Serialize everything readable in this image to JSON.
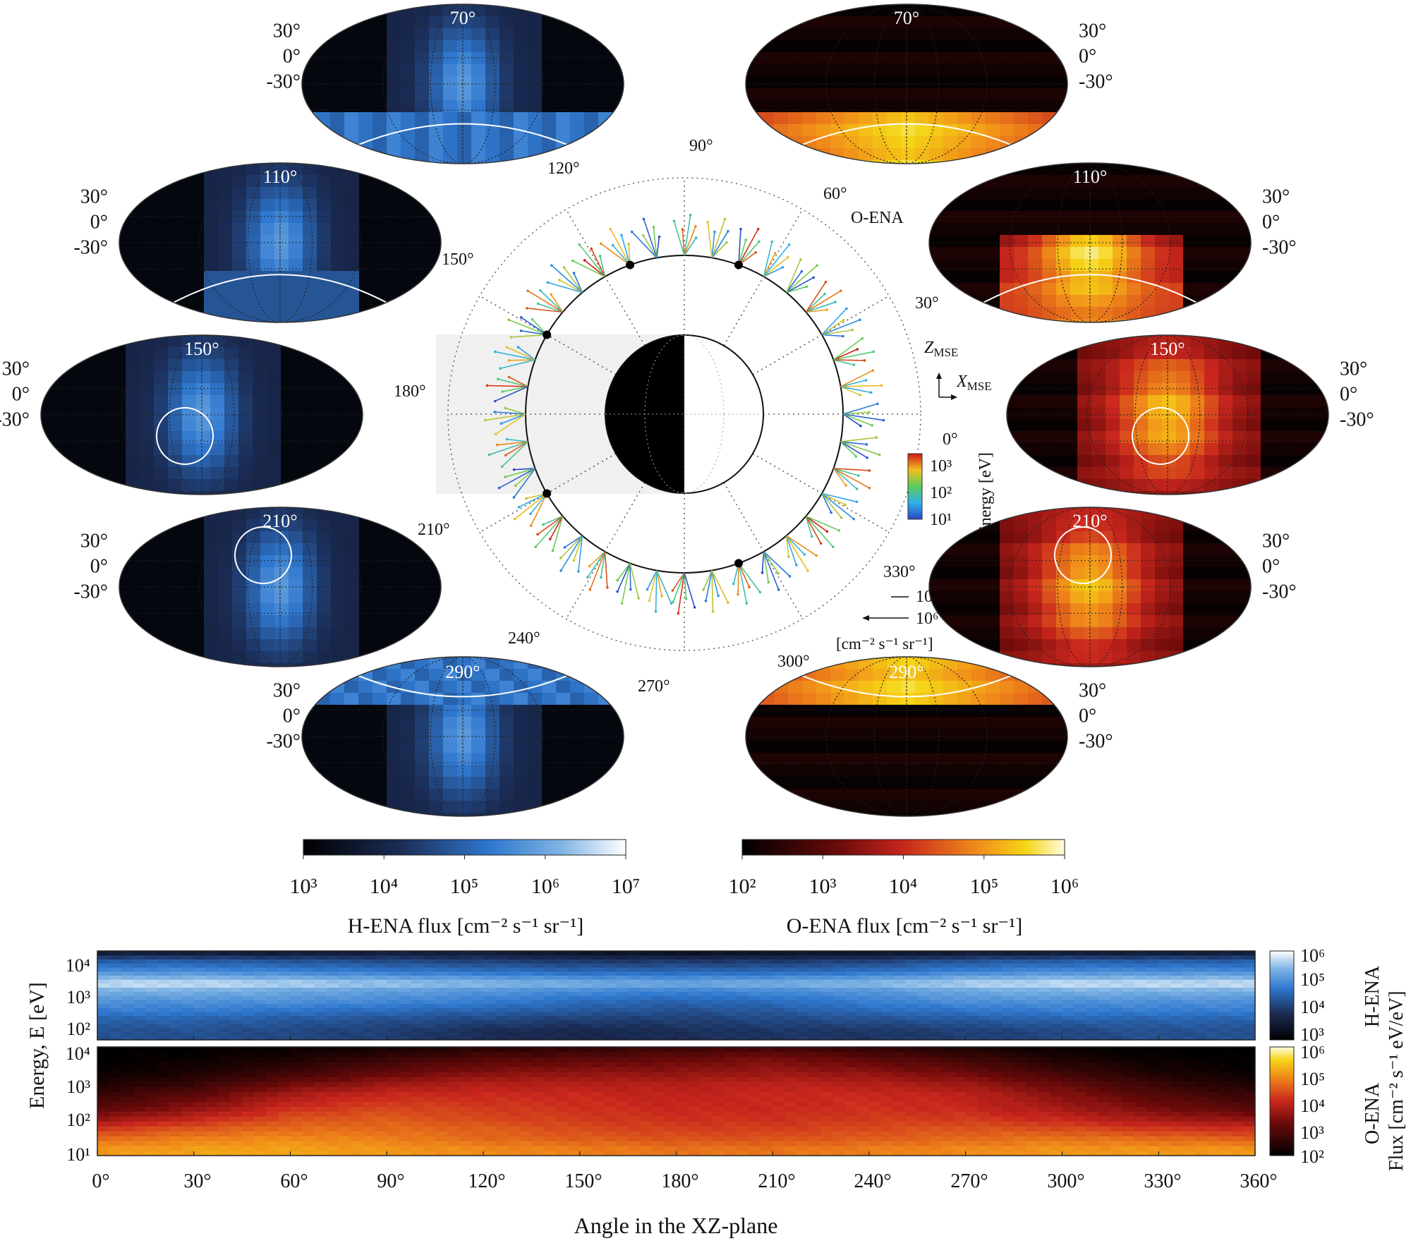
{
  "figure": {
    "polar": {
      "angle_labels": [
        "90°",
        "60°",
        "30°",
        "330°",
        "300°",
        "270°",
        "240°",
        "210°",
        "180°",
        "150°",
        "120°"
      ],
      "o_ena_label": "O-ENA",
      "axis_z": "Z",
      "axis_x": "X",
      "axis_sub": "MSE",
      "zero_label": "0°",
      "energy_title": "Energy [eV]",
      "energy_ticks": [
        "10¹",
        "10²",
        "10³"
      ],
      "flux_key_small": "10²",
      "flux_key_large": "10⁶",
      "flux_key_unit": "[cm⁻² s⁻¹ sr⁻¹]"
    },
    "h_maps": [
      {
        "label": "70°"
      },
      {
        "label": "110°"
      },
      {
        "label": "150°"
      },
      {
        "label": "210°"
      },
      {
        "label": "290°"
      }
    ],
    "o_maps": [
      {
        "label": "70°"
      },
      {
        "label": "110°"
      },
      {
        "label": "150°"
      },
      {
        "label": "210°"
      },
      {
        "label": "290°"
      }
    ],
    "lat_labels": [
      "30°",
      "0°",
      "-30°"
    ],
    "h_colorbar": {
      "ticks": [
        "10³",
        "10⁴",
        "10⁵",
        "10⁶",
        "10⁷"
      ],
      "label": "H-ENA flux [cm⁻² s⁻¹ sr⁻¹]"
    },
    "o_colorbar": {
      "ticks": [
        "10²",
        "10³",
        "10⁴",
        "10⁵",
        "10⁶"
      ],
      "label": "O-ENA flux [cm⁻² s⁻¹ sr⁻¹]"
    },
    "spectrogram": {
      "y_ticks": [
        "10⁴",
        "10³",
        "10²",
        "10¹"
      ],
      "y_label": "Energy, E [eV]",
      "x_ticks": [
        "0°",
        "30°",
        "60°",
        "90°",
        "120°",
        "150°",
        "180°",
        "210°",
        "240°",
        "270°",
        "300°",
        "330°",
        "360°"
      ],
      "x_label": "Angle in the XZ-plane",
      "h_label": "H-ENA",
      "o_label": "O-ENA",
      "flux_label": "Flux [cm⁻² s⁻¹ eV/eV]",
      "h_cb_ticks": [
        "10⁶",
        "10⁵",
        "10⁴",
        "10³"
      ],
      "o_cb_ticks": [
        "10⁶",
        "10⁵",
        "10⁴",
        "10³",
        "10²"
      ]
    }
  },
  "chart_data": [
    {
      "type": "heatmap",
      "title": "",
      "xlabel": "Angle in the XZ-plane",
      "ylabel": "Energy, E [eV]",
      "species": "H-ENA",
      "x": [
        0,
        30,
        60,
        90,
        120,
        150,
        180,
        210,
        240,
        270,
        300,
        330,
        360
      ],
      "xlim": [
        0,
        360
      ],
      "ylim": [
        10,
        10000
      ],
      "y_scale": "log",
      "colorbar_range": [
        1000,
        1000000
      ],
      "energy_rows_eV": [
        20,
        50,
        100,
        200,
        500,
        800,
        2000,
        5000,
        10000
      ],
      "log10_flux_by_energy_vs_angle": [
        [
          4.3,
          4.3,
          4.2,
          4.1,
          3.9,
          3.8,
          3.9,
          4.0,
          4.0,
          4.1,
          4.2,
          4.3,
          4.3
        ],
        [
          4.5,
          4.5,
          4.4,
          4.3,
          4.2,
          4.1,
          4.1,
          4.2,
          4.3,
          4.4,
          4.5,
          4.5,
          4.5
        ],
        [
          4.8,
          4.8,
          4.7,
          4.6,
          4.5,
          4.4,
          4.3,
          4.4,
          4.6,
          4.7,
          4.8,
          4.8,
          4.8
        ],
        [
          5.0,
          5.0,
          5.0,
          4.9,
          4.8,
          4.6,
          4.5,
          4.6,
          4.8,
          5.0,
          5.0,
          5.0,
          5.0
        ],
        [
          5.4,
          5.4,
          5.3,
          5.2,
          5.1,
          5.0,
          4.9,
          5.0,
          5.1,
          5.3,
          5.4,
          5.4,
          5.4
        ],
        [
          5.8,
          5.8,
          5.7,
          5.6,
          5.5,
          5.4,
          5.3,
          5.4,
          5.5,
          5.7,
          5.8,
          5.8,
          5.8
        ],
        [
          5.0,
          5.0,
          4.9,
          4.8,
          4.7,
          4.6,
          4.6,
          4.6,
          4.7,
          4.9,
          5.0,
          5.0,
          5.0
        ],
        [
          4.4,
          4.4,
          4.3,
          4.2,
          4.1,
          4.0,
          4.0,
          4.0,
          4.1,
          4.3,
          4.4,
          4.4,
          4.4
        ],
        [
          3.4,
          3.4,
          3.4,
          3.5,
          3.5,
          3.3,
          3.2,
          3.3,
          3.3,
          3.4,
          3.4,
          3.4,
          3.4
        ]
      ]
    },
    {
      "type": "heatmap",
      "title": "",
      "xlabel": "Angle in the XZ-plane",
      "ylabel": "Energy, E [eV]",
      "species": "O-ENA",
      "x": [
        0,
        30,
        60,
        90,
        120,
        150,
        180,
        210,
        240,
        270,
        300,
        330,
        360
      ],
      "xlim": [
        0,
        360
      ],
      "ylim": [
        10,
        10000
      ],
      "y_scale": "log",
      "colorbar_range": [
        100,
        1000000
      ],
      "energy_rows_eV": [
        15,
        30,
        60,
        100,
        200,
        500,
        1000,
        2000,
        5000,
        10000
      ],
      "log10_flux_by_energy_vs_angle": [
        [
          5.0,
          5.1,
          5.1,
          5.0,
          4.9,
          4.8,
          4.7,
          4.7,
          4.8,
          4.9,
          5.0,
          5.0,
          5.0
        ],
        [
          4.6,
          4.8,
          4.9,
          4.8,
          4.6,
          4.5,
          4.4,
          4.4,
          4.5,
          4.6,
          4.7,
          4.6,
          4.5
        ],
        [
          4.1,
          4.4,
          4.6,
          4.6,
          4.5,
          4.3,
          4.2,
          4.2,
          4.3,
          4.4,
          4.3,
          4.1,
          4.0
        ],
        [
          3.6,
          4.0,
          4.4,
          4.5,
          4.3,
          4.2,
          4.1,
          4.1,
          4.2,
          4.2,
          4.0,
          3.7,
          3.5
        ],
        [
          3.0,
          3.5,
          4.1,
          4.3,
          4.2,
          4.1,
          4.0,
          4.0,
          4.1,
          4.0,
          3.7,
          3.3,
          3.0
        ],
        [
          2.6,
          3.0,
          3.7,
          4.0,
          4.0,
          4.0,
          3.9,
          4.0,
          4.0,
          3.9,
          3.4,
          2.9,
          2.6
        ],
        [
          2.3,
          2.6,
          3.2,
          3.6,
          3.8,
          3.8,
          3.8,
          3.9,
          3.8,
          3.6,
          3.1,
          2.6,
          2.3
        ],
        [
          2.1,
          2.3,
          2.7,
          3.1,
          3.4,
          3.5,
          3.5,
          3.6,
          3.5,
          3.2,
          2.7,
          2.3,
          2.1
        ],
        [
          2.0,
          2.1,
          2.3,
          2.6,
          2.9,
          3.0,
          3.1,
          3.3,
          3.0,
          2.7,
          2.3,
          2.1,
          2.0
        ],
        [
          2.0,
          2.0,
          2.1,
          2.2,
          2.4,
          2.5,
          2.6,
          2.7,
          2.5,
          2.3,
          2.1,
          2.0,
          2.0
        ]
      ]
    }
  ]
}
